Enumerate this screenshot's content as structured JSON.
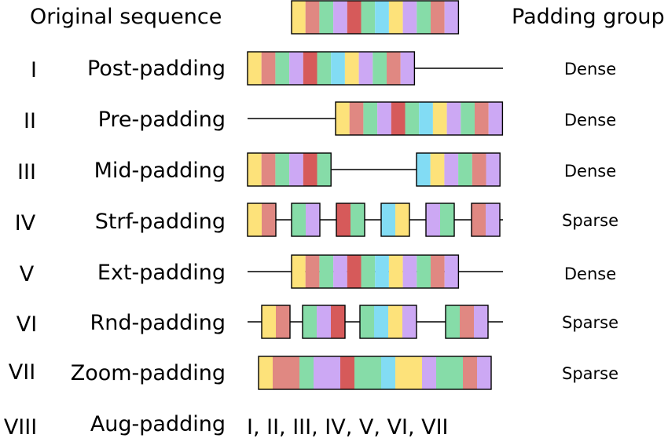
{
  "colors": {
    "Y": "#fde27a",
    "P": "#e08882",
    "G": "#86dca8",
    "V": "#cca8f4",
    "R": "#d65a5a",
    "C": "#82dcf4"
  },
  "header": {
    "left": "Original sequence",
    "right": "Padding group"
  },
  "original_sequence": [
    "Y",
    "P",
    "G",
    "V",
    "R",
    "G",
    "C",
    "Y",
    "V",
    "G",
    "P",
    "V"
  ],
  "rows": [
    {
      "num": "I",
      "label": "Post-padding",
      "group": "Dense"
    },
    {
      "num": "II",
      "label": "Pre-padding",
      "group": "Dense"
    },
    {
      "num": "III",
      "label": "Mid-padding",
      "group": "Dense"
    },
    {
      "num": "IV",
      "label": "Strf-padding",
      "group": "Sparse"
    },
    {
      "num": "V",
      "label": "Ext-padding",
      "group": "Dense"
    },
    {
      "num": "VI",
      "label": "Rnd-padding",
      "group": "Sparse"
    },
    {
      "num": "VII",
      "label": "Zoom-padding",
      "group": "Sparse"
    },
    {
      "num": "VIII",
      "label": "Aug-padding",
      "group": "",
      "combination": "I, II, III, IV, V, VI, VII"
    }
  ]
}
